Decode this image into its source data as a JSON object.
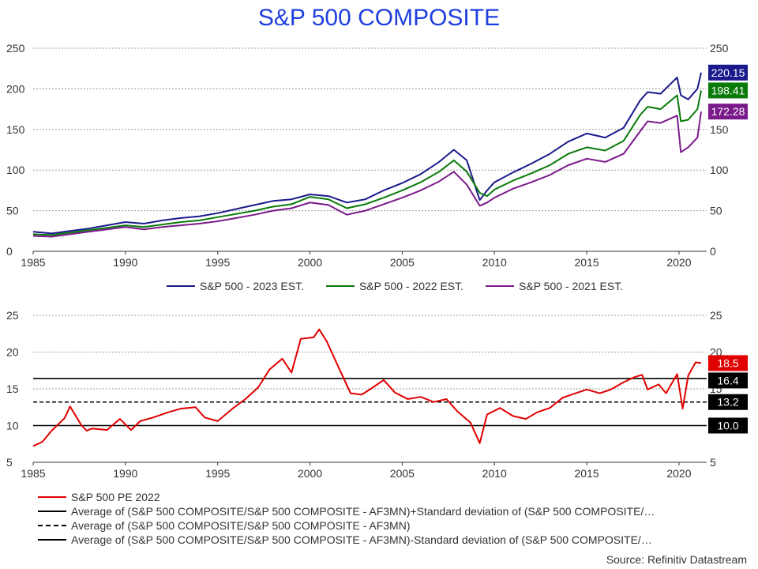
{
  "title": "S&P 500 COMPOSITE",
  "source": "Source: Refinitiv Datastream",
  "chart_data": [
    {
      "type": "line",
      "xlim": [
        1985,
        2021.5
      ],
      "ylim": [
        0,
        250
      ],
      "x_ticks": [
        1985,
        1990,
        1995,
        2000,
        2005,
        2010,
        2015,
        2020
      ],
      "y_ticks": [
        0,
        50,
        100,
        150,
        200,
        250
      ],
      "grid": true,
      "legend": "bottom",
      "series": [
        {
          "name": "S&P 500 - 2023 EST.",
          "color": "#1a1a8c",
          "end_label": "220.15",
          "x": [
            1985,
            1986,
            1987,
            1988,
            1989,
            1990,
            1991,
            1992,
            1993,
            1994,
            1995,
            1996,
            1997,
            1998,
            1999,
            2000,
            2001,
            2002,
            2003,
            2004,
            2005,
            2006,
            2007,
            2007.8,
            2008.5,
            2009.2,
            2009.6,
            2010,
            2011,
            2012,
            2013,
            2014,
            2015,
            2016,
            2017,
            2017.9,
            2018.3,
            2019,
            2019.9,
            2020.1,
            2020.5,
            2021,
            2021.2
          ],
          "y": [
            24,
            22,
            25,
            28,
            32,
            36,
            34,
            38,
            41,
            43,
            47,
            52,
            57,
            62,
            64,
            70,
            68,
            60,
            64,
            75,
            84,
            95,
            110,
            125,
            112,
            63,
            75,
            85,
            97,
            108,
            120,
            135,
            145,
            140,
            152,
            186,
            196,
            194,
            214,
            192,
            187,
            200,
            220
          ]
        },
        {
          "name": "S&P 500 - 2022 EST.",
          "color": "#0a7a0a",
          "end_label": "198.41",
          "x": [
            1985,
            1986,
            1987,
            1988,
            1989,
            1990,
            1991,
            1992,
            1993,
            1994,
            1995,
            1996,
            1997,
            1998,
            1999,
            2000,
            2001,
            2002,
            2003,
            2004,
            2005,
            2006,
            2007,
            2007.8,
            2008.5,
            2009.2,
            2009.6,
            2010,
            2011,
            2012,
            2013,
            2014,
            2015,
            2016,
            2017,
            2017.9,
            2018.3,
            2019,
            2019.9,
            2020.1,
            2020.5,
            2021,
            2021.2
          ],
          "y": [
            21,
            20,
            23,
            26,
            29,
            32,
            30,
            33,
            36,
            38,
            42,
            46,
            50,
            55,
            58,
            67,
            64,
            53,
            58,
            66,
            75,
            85,
            98,
            112,
            98,
            72,
            68,
            76,
            87,
            96,
            106,
            120,
            128,
            124,
            136,
            168,
            178,
            175,
            192,
            160,
            162,
            175,
            198
          ]
        },
        {
          "name": "S&P 500 - 2021 EST.",
          "color": "#7a1a8a",
          "end_label": "172.28",
          "x": [
            1985,
            1986,
            1987,
            1988,
            1989,
            1990,
            1991,
            1992,
            1993,
            1994,
            1995,
            1996,
            1997,
            1998,
            1999,
            2000,
            2001,
            2002,
            2003,
            2004,
            2005,
            2006,
            2007,
            2007.8,
            2008.5,
            2009.2,
            2009.6,
            2010,
            2011,
            2012,
            2013,
            2014,
            2015,
            2016,
            2017,
            2017.9,
            2018.3,
            2019,
            2019.9,
            2020.1,
            2020.5,
            2021,
            2021.2
          ],
          "y": [
            19,
            18,
            21,
            24,
            27,
            30,
            27,
            30,
            32,
            34,
            37,
            41,
            45,
            50,
            53,
            60,
            57,
            45,
            50,
            58,
            66,
            75,
            86,
            98,
            82,
            56,
            60,
            66,
            77,
            85,
            94,
            106,
            114,
            110,
            120,
            148,
            160,
            158,
            167,
            122,
            128,
            140,
            172
          ]
        }
      ]
    },
    {
      "type": "line",
      "xlim": [
        1985,
        2021.5
      ],
      "ylim": [
        5,
        25
      ],
      "x_ticks": [
        1985,
        1990,
        1995,
        2000,
        2005,
        2010,
        2015,
        2020
      ],
      "y_ticks": [
        5,
        10,
        15,
        20,
        25
      ],
      "grid": true,
      "legend": "bottom",
      "series": [
        {
          "name": "S&P 500 PE 2022",
          "color": "#e00000",
          "end_label": "18.5",
          "x": [
            1985,
            1985.5,
            1986,
            1986.7,
            1987,
            1987.6,
            1987.9,
            1988.2,
            1989,
            1989.7,
            1990.3,
            1990.8,
            1991.5,
            1992.3,
            1993,
            1993.8,
            1994.3,
            1995,
            1995.8,
            1996.5,
            1997.2,
            1997.8,
            1998.5,
            1999,
            1999.5,
            2000.2,
            2000.5,
            2000.9,
            2001.5,
            2002.2,
            2002.8,
            2003.3,
            2004,
            2004.6,
            2005.3,
            2006,
            2006.7,
            2007.4,
            2008,
            2008.7,
            2009.2,
            2009.6,
            2010.3,
            2011,
            2011.7,
            2012.3,
            2013,
            2013.7,
            2014.4,
            2015,
            2015.7,
            2016.3,
            2017,
            2017.6,
            2018,
            2018.3,
            2018.9,
            2019.3,
            2019.9,
            2020.2,
            2020.5,
            2020.9,
            2021.2
          ],
          "y": [
            7.2,
            7.8,
            9.3,
            11.0,
            12.6,
            10.1,
            9.3,
            9.6,
            9.4,
            10.9,
            9.4,
            10.6,
            11.1,
            11.8,
            12.3,
            12.5,
            11.1,
            10.6,
            12.3,
            13.6,
            15.2,
            17.6,
            19.1,
            17.2,
            21.8,
            22.0,
            23.1,
            21.5,
            18.2,
            14.4,
            14.2,
            15.0,
            16.2,
            14.5,
            13.6,
            13.9,
            13.2,
            13.6,
            11.9,
            10.4,
            7.6,
            11.5,
            12.4,
            11.3,
            10.9,
            11.8,
            12.4,
            13.8,
            14.4,
            14.9,
            14.4,
            14.9,
            15.9,
            16.6,
            16.9,
            14.9,
            15.6,
            14.4,
            17.0,
            12.3,
            16.8,
            18.6,
            18.5
          ]
        }
      ],
      "reference_lines": [
        {
          "name": "Average of (S&P 500 COMPOSITE/S&P 500 COMPOSITE - AF3MN)+Standard deviation of (S&P 500 COMPOSITE/…",
          "value": 16.4,
          "label": "16.4",
          "style": "solid",
          "color": "#000000"
        },
        {
          "name": "Average of (S&P 500 COMPOSITE/S&P 500 COMPOSITE - AF3MN)",
          "value": 13.2,
          "label": "13.2",
          "style": "dashed",
          "color": "#000000"
        },
        {
          "name": "Average of (S&P 500 COMPOSITE/S&P 500 COMPOSITE - AF3MN)-Standard deviation of (S&P 500 COMPOSITE/…",
          "value": 10.0,
          "label": "10.0",
          "style": "solid",
          "color": "#000000"
        }
      ]
    }
  ]
}
